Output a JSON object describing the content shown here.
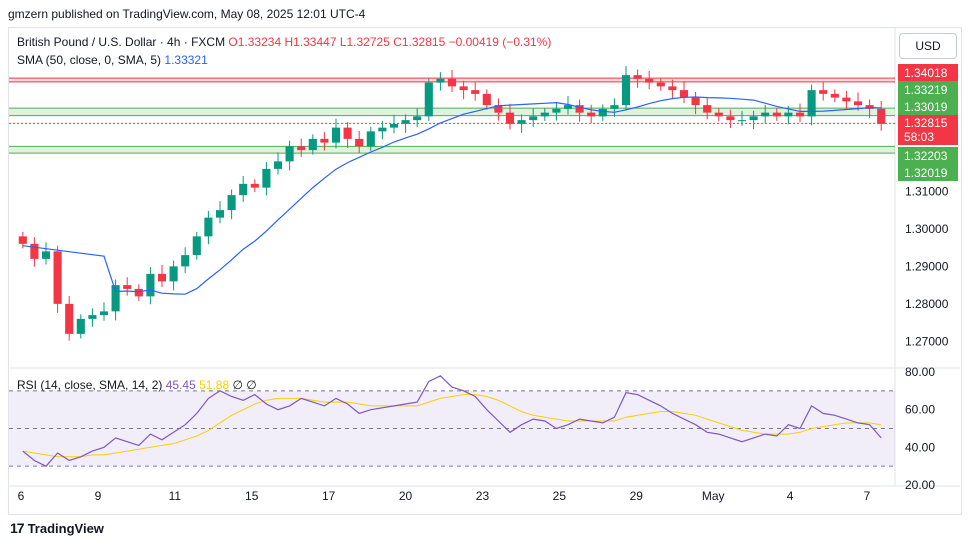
{
  "header": {
    "published": "gmzern published on TradingView.com, May 08, 2025 12:01 UTC-4"
  },
  "title": {
    "symbol": "British Pound / U.S. Dollar · 4h · FXCM",
    "ohlc": "O1.33234 H1.33447 L1.32725 C1.32815 −0.00419 (−0.31%)"
  },
  "sma": {
    "label": "SMA (50, close, 0, SMA, 5)",
    "value": "1.33321"
  },
  "rsi": {
    "label": "RSI (14, close, SMA, 14, 2)",
    "value": "45.45",
    "ma_value": "51.88",
    "extra": "∅ ∅"
  },
  "currency": "USD",
  "price_tags": {
    "t1": "1.34018",
    "t2": "1.33219",
    "t3": "1.33019",
    "t4": "1.32815",
    "t4b": "58:03",
    "t5": "1.32203",
    "t6": "1.32019"
  },
  "colors": {
    "up": "#089981",
    "down": "#f23645",
    "sma": "#2962ff",
    "rsi": "#7e57c2",
    "rsi_ma": "#f7d000",
    "zone_green": "#4caf50",
    "zone_red": "#f23645"
  },
  "footer": {
    "brand": "TradingView",
    "logo": "17"
  },
  "chart_data": [
    {
      "type": "candlestick",
      "yaxis_ticks": [
        "1.31000",
        "1.30000",
        "1.29000",
        "1.28000",
        "1.27000"
      ],
      "x_ticks": [
        "6",
        "9",
        "11",
        "15",
        "17",
        "20",
        "23",
        "25",
        "29",
        "May",
        "4",
        "7"
      ],
      "ylim": [
        1.2645,
        1.3445
      ],
      "zones": [
        {
          "type": "resistance",
          "from": 1.3392,
          "to": 1.3402
        },
        {
          "type": "support",
          "from": 1.3302,
          "to": 1.3322
        },
        {
          "type": "support",
          "from": 1.3202,
          "to": 1.322
        }
      ],
      "last_price": 1.32815,
      "close_path": [
        1.296,
        1.292,
        1.294,
        1.28,
        1.272,
        1.276,
        1.277,
        1.278,
        1.285,
        1.284,
        1.282,
        1.288,
        1.286,
        1.29,
        1.293,
        1.298,
        1.303,
        1.305,
        1.309,
        1.312,
        1.311,
        1.316,
        1.318,
        1.322,
        1.321,
        1.324,
        1.323,
        1.327,
        1.324,
        1.322,
        1.326,
        1.327,
        1.328,
        1.329,
        1.33,
        1.339,
        1.34,
        1.338,
        1.337,
        1.336,
        1.333,
        1.331,
        1.328,
        1.329,
        1.33,
        1.331,
        1.332,
        1.333,
        1.331,
        1.33,
        1.332,
        1.333,
        1.341,
        1.34,
        1.339,
        1.338,
        1.337,
        1.335,
        1.333,
        1.331,
        1.33,
        1.329,
        1.329,
        1.33,
        1.331,
        1.33,
        1.331,
        1.33,
        1.337,
        1.336,
        1.335,
        1.334,
        1.333,
        1.332,
        1.328
      ]
    },
    {
      "type": "line",
      "name": "RSI",
      "yaxis_ticks": [
        "80.00",
        "60.00",
        "40.00",
        "20.00"
      ],
      "ylim": [
        20,
        80
      ],
      "bands": [
        70,
        50,
        30
      ],
      "rsi": [
        38,
        33,
        30,
        37,
        33,
        35,
        38,
        40,
        45,
        43,
        41,
        47,
        44,
        48,
        52,
        58,
        66,
        70,
        67,
        65,
        68,
        63,
        60,
        62,
        66,
        64,
        62,
        66,
        63,
        58,
        60,
        61,
        62,
        63,
        64,
        75,
        78,
        72,
        70,
        67,
        60,
        54,
        48,
        52,
        55,
        54,
        50,
        52,
        55,
        54,
        53,
        56,
        69,
        68,
        65,
        62,
        58,
        55,
        52,
        48,
        47,
        45,
        43,
        45,
        47,
        46,
        52,
        50,
        62,
        58,
        57,
        55,
        53,
        52,
        45
      ],
      "rsi_ma": [
        38,
        37,
        36,
        35,
        35,
        35,
        36,
        36,
        37,
        38,
        39,
        40,
        41,
        42,
        44,
        46,
        49,
        53,
        57,
        60,
        63,
        65,
        66,
        66,
        66,
        65,
        64,
        64,
        64,
        63,
        62,
        62,
        62,
        62,
        62,
        64,
        66,
        67,
        68,
        68,
        67,
        65,
        62,
        59,
        57,
        56,
        55,
        54,
        54,
        54,
        54,
        54,
        56,
        57,
        58,
        59,
        59,
        58,
        57,
        55,
        53,
        51,
        49,
        48,
        47,
        47,
        47,
        48,
        50,
        51,
        52,
        53,
        53,
        53,
        52
      ]
    }
  ]
}
